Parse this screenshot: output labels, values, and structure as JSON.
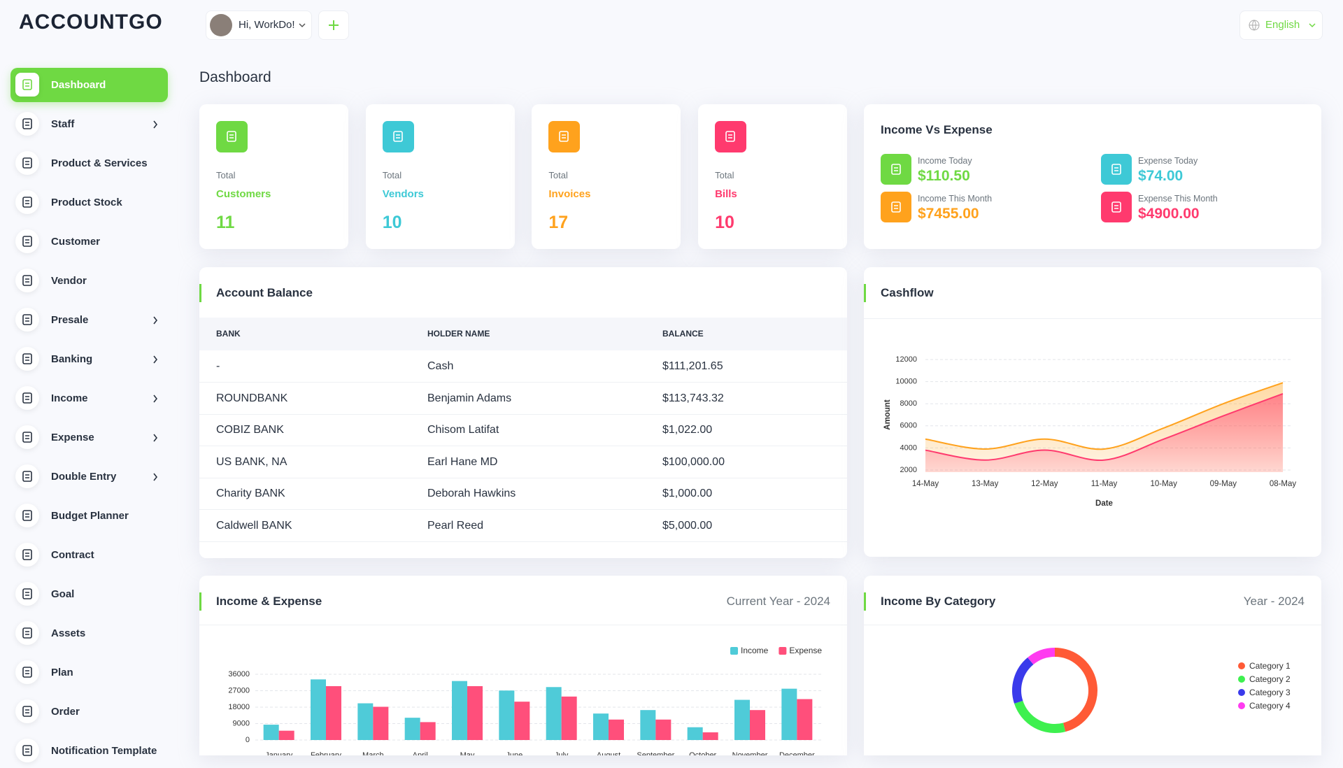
{
  "header": {
    "logo": "ACCOUNTGO",
    "greeting": "Hi, WorkDo!",
    "language": "English"
  },
  "sidebar": [
    {
      "label": "Dashboard",
      "submenu": false
    },
    {
      "label": "Staff",
      "submenu": true
    },
    {
      "label": "Product & Services",
      "submenu": false
    },
    {
      "label": "Product Stock",
      "submenu": false
    },
    {
      "label": "Customer",
      "submenu": false
    },
    {
      "label": "Vendor",
      "submenu": false
    },
    {
      "label": "Presale",
      "submenu": true
    },
    {
      "label": "Banking",
      "submenu": true
    },
    {
      "label": "Income",
      "submenu": true
    },
    {
      "label": "Expense",
      "submenu": true
    },
    {
      "label": "Double Entry",
      "submenu": true
    },
    {
      "label": "Budget Planner",
      "submenu": false
    },
    {
      "label": "Contract",
      "submenu": false
    },
    {
      "label": "Goal",
      "submenu": false
    },
    {
      "label": "Assets",
      "submenu": false
    },
    {
      "label": "Plan",
      "submenu": false
    },
    {
      "label": "Order",
      "submenu": false
    },
    {
      "label": "Notification Template",
      "submenu": false
    }
  ],
  "page_title": "Dashboard",
  "stats": [
    {
      "label": "Total",
      "name": "Customers",
      "value": 11,
      "color": "#6fd943"
    },
    {
      "label": "Total",
      "name": "Vendors",
      "value": 10,
      "color": "#3ec9d6"
    },
    {
      "label": "Total",
      "name": "Invoices",
      "value": 17,
      "color": "#ffa21d"
    },
    {
      "label": "Total",
      "name": "Bills",
      "value": 10,
      "color": "#ff3a6e"
    }
  ],
  "income_vs_expense": {
    "title": "Income Vs Expense",
    "items": [
      {
        "label": "Income Today",
        "value": "$110.50",
        "color": "#6fd943"
      },
      {
        "label": "Expense Today",
        "value": "$74.00",
        "color": "#3ec9d6"
      },
      {
        "label": "Income This Month",
        "value": "$7455.00",
        "color": "#ffa21d"
      },
      {
        "label": "Expense This Month",
        "value": "$4900.00",
        "color": "#ff3a6e"
      }
    ]
  },
  "account_balance": {
    "title": "Account Balance",
    "columns": [
      "BANK",
      "HOLDER NAME",
      "BALANCE"
    ],
    "rows": [
      [
        "-",
        "Cash",
        "$111,201.65"
      ],
      [
        "ROUNDBANK",
        "Benjamin Adams",
        "$113,743.32"
      ],
      [
        "COBIZ BANK",
        "Chisom Latifat",
        "$1,022.00"
      ],
      [
        "US BANK, NA",
        "Earl Hane MD",
        "$100,000.00"
      ],
      [
        "Charity BANK",
        "Deborah Hawkins",
        "$1,000.00"
      ],
      [
        "Caldwell BANK",
        "Pearl Reed",
        "$5,000.00"
      ]
    ]
  },
  "chart_data": [
    {
      "type": "area",
      "title": "Cashflow",
      "x_label": "Date",
      "y_label": "Amount",
      "categories": [
        "14-May",
        "13-May",
        "12-May",
        "11-May",
        "10-May",
        "09-May",
        "08-May"
      ],
      "series": [
        {
          "color": "#ffa21d",
          "values": [
            4800,
            3900,
            4800,
            3900,
            5800,
            8000,
            9900
          ]
        },
        {
          "color": "#ff3a6e",
          "values": [
            3800,
            2900,
            3800,
            2900,
            4800,
            6900,
            8900
          ]
        }
      ],
      "ylim": [
        2000,
        12000
      ],
      "yticks": [
        2000,
        4000,
        6000,
        8000,
        10000,
        12000
      ],
      "grid": true
    },
    {
      "type": "bar",
      "title": "Income & Expense",
      "subtitle": "Current Year - 2024",
      "categories": [
        "January",
        "February",
        "March",
        "April",
        "May",
        "June",
        "July",
        "August",
        "September",
        "October",
        "November",
        "December"
      ],
      "series": [
        {
          "name": "Income",
          "color": "#4fcbd8",
          "values": [
            8400,
            33200,
            20100,
            12200,
            32300,
            27100,
            29000,
            14500,
            16400,
            7000,
            22000,
            28100
          ]
        },
        {
          "name": "Expense",
          "color": "#ff4f7b",
          "values": [
            5100,
            29500,
            18200,
            9800,
            29500,
            21000,
            23800,
            11200,
            11200,
            4200,
            16400,
            22400
          ]
        }
      ],
      "ylim": [
        0,
        36000
      ],
      "yticks": [
        0,
        9000,
        18000,
        27000,
        36000
      ],
      "grid": true
    },
    {
      "type": "donut",
      "title": "Income By Category",
      "subtitle": "Year - 2024",
      "categories": [
        "Category 1",
        "Category 2",
        "Category 3",
        "Category 4"
      ],
      "values": [
        46,
        24,
        19,
        11
      ],
      "colors": [
        "#ff5a36",
        "#3ef04f",
        "#3a3aeb",
        "#ff3bf0"
      ]
    }
  ]
}
